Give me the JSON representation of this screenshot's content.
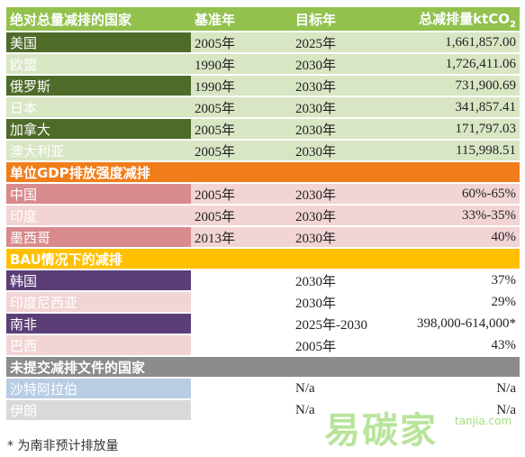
{
  "header": {
    "col0": "绝对总量减排的国家",
    "col1": "基准年",
    "col2": "目标年",
    "col3": "总减排量ktCO",
    "col3_sub": "2"
  },
  "colors": {
    "green_dark": "#4e6b2a",
    "green_light": "#d8e6c4",
    "green_header": "#92c14e",
    "orange": "#f07d1a",
    "red_dark": "#d88a8c",
    "red_light": "#f2d4d5",
    "yellow": "#ffc000",
    "purple_dark": "#5b3e76",
    "gray": "#8c8c8c",
    "blue_light": "#b8cce4",
    "gray_light": "#d9d9d9"
  },
  "sections": [
    {
      "title": "",
      "rows": [
        {
          "country": "美国",
          "base": "2005年",
          "target": "2025年",
          "amount": "1,661,857.00",
          "style": "g1"
        },
        {
          "country": "欧盟",
          "base": "1990年",
          "target": "2030年",
          "amount": "1,726,411.06",
          "style": "g2"
        },
        {
          "country": "俄罗斯",
          "base": "1990年",
          "target": "2030年",
          "amount": "731,900.69",
          "style": "g1"
        },
        {
          "country": "日本",
          "base": "2005年",
          "target": "2030年",
          "amount": "341,857.41",
          "style": "g2"
        },
        {
          "country": "加拿大",
          "base": "2005年",
          "target": "2030年",
          "amount": "171,797.03",
          "style": "g1"
        },
        {
          "country": "澳大利亚",
          "base": "2005年",
          "target": "2030年",
          "amount": "115,998.51",
          "style": "g2"
        }
      ]
    },
    {
      "title": "单位GDP排放强度减排",
      "rows": [
        {
          "country": "中国",
          "base": "2005年",
          "target": "2030年",
          "amount": "60%-65%",
          "style": "r1"
        },
        {
          "country": "印度",
          "base": "2005年",
          "target": "2030年",
          "amount": "33%-35%",
          "style": "r2"
        },
        {
          "country": "墨西哥",
          "base": "2013年",
          "target": "2030年",
          "amount": "40%",
          "style": "r1"
        }
      ]
    },
    {
      "title": "BAU情况下的减排",
      "rows": [
        {
          "country": "韩国",
          "base": "",
          "target": "2030年",
          "amount": "37%",
          "style": "p1"
        },
        {
          "country": "印度尼西亚",
          "base": "",
          "target": "2030年",
          "amount": "29%",
          "style": "p2"
        },
        {
          "country": "南非",
          "base": "",
          "target": "2025年-2030",
          "amount": "398,000-614,000*",
          "style": "p1"
        },
        {
          "country": "巴西",
          "base": "",
          "target": "2005年",
          "amount": "43%",
          "style": "p2"
        }
      ]
    },
    {
      "title": "未提交减排文件的国家",
      "rows": [
        {
          "country": "沙特阿拉伯",
          "base": "",
          "target": "N/a",
          "amount": "N/a",
          "style": "b1"
        },
        {
          "country": "伊朗",
          "base": "",
          "target": "N/a",
          "amount": "N/a",
          "style": "b2"
        }
      ]
    }
  ],
  "footnote": "* 为南非预计排放量",
  "watermark": {
    "text": "易碳家",
    "url": "tanjia.com"
  }
}
